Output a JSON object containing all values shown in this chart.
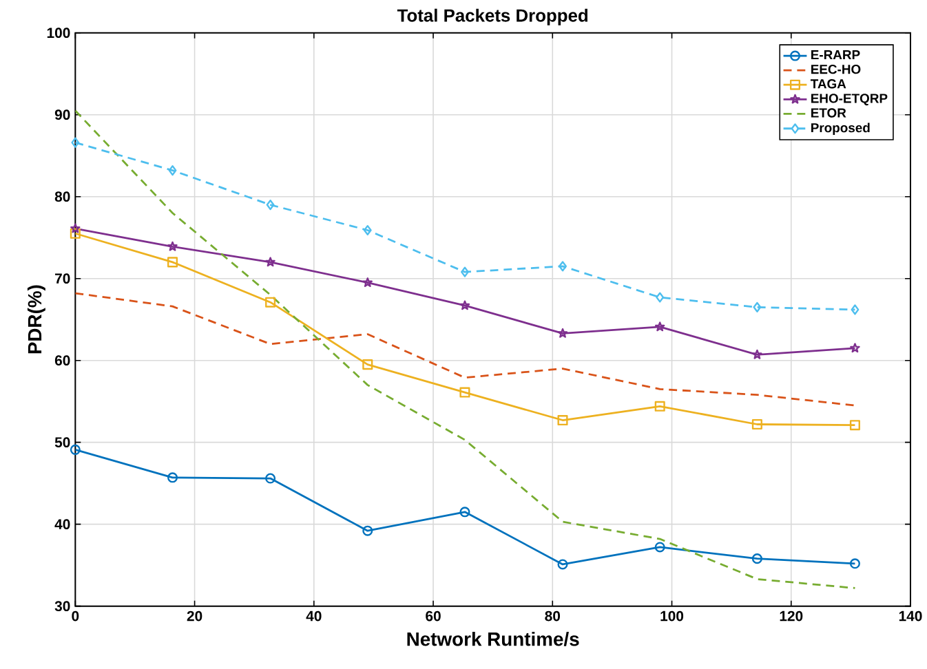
{
  "chart_data": {
    "type": "line",
    "title": "Total Packets Dropped",
    "xlabel": "Network Runtime/s",
    "ylabel": "PDR(%)",
    "x": [
      0,
      16.3,
      32.7,
      49,
      65.3,
      81.7,
      98,
      114.3,
      130.7
    ],
    "xlim": [
      0,
      140
    ],
    "xticks": [
      0,
      20,
      40,
      60,
      80,
      100,
      120,
      140
    ],
    "ylim": [
      30,
      100
    ],
    "yticks": [
      30,
      40,
      50,
      60,
      70,
      80,
      90,
      100
    ],
    "grid": true,
    "legend": "top right",
    "series": [
      {
        "name": "E-RARP",
        "color": "#0072bd",
        "marker": "circle",
        "line_style": "solid",
        "values": [
          49.1,
          45.7,
          45.6,
          39.2,
          41.5,
          35.1,
          37.2,
          35.8,
          35.2
        ]
      },
      {
        "name": "EEC-HO",
        "color": "#d95319",
        "marker": "none",
        "line_style": "dashed",
        "values": [
          68.2,
          66.6,
          62.0,
          63.2,
          57.9,
          59.0,
          56.5,
          55.8,
          54.5
        ]
      },
      {
        "name": "TAGA",
        "color": "#edb120",
        "marker": "square",
        "line_style": "solid",
        "values": [
          75.5,
          72.0,
          67.1,
          59.5,
          56.1,
          52.7,
          54.4,
          52.2,
          52.1
        ]
      },
      {
        "name": "EHO-ETQRP",
        "color": "#7e2f8e",
        "marker": "star",
        "line_style": "solid",
        "values": [
          76.1,
          73.9,
          72.0,
          69.5,
          66.7,
          63.3,
          64.1,
          60.7,
          61.5
        ]
      },
      {
        "name": "ETOR",
        "color": "#77ac30",
        "marker": "none",
        "line_style": "dashed",
        "values": [
          90.5,
          78.0,
          68.0,
          57.0,
          50.3,
          40.3,
          38.2,
          33.3,
          32.2
        ]
      },
      {
        "name": "Proposed",
        "color": "#4dbeee",
        "marker": "diamond",
        "line_style": "dashed",
        "values": [
          86.6,
          83.2,
          79.0,
          75.9,
          70.8,
          71.5,
          67.7,
          66.5,
          66.2
        ]
      }
    ]
  }
}
